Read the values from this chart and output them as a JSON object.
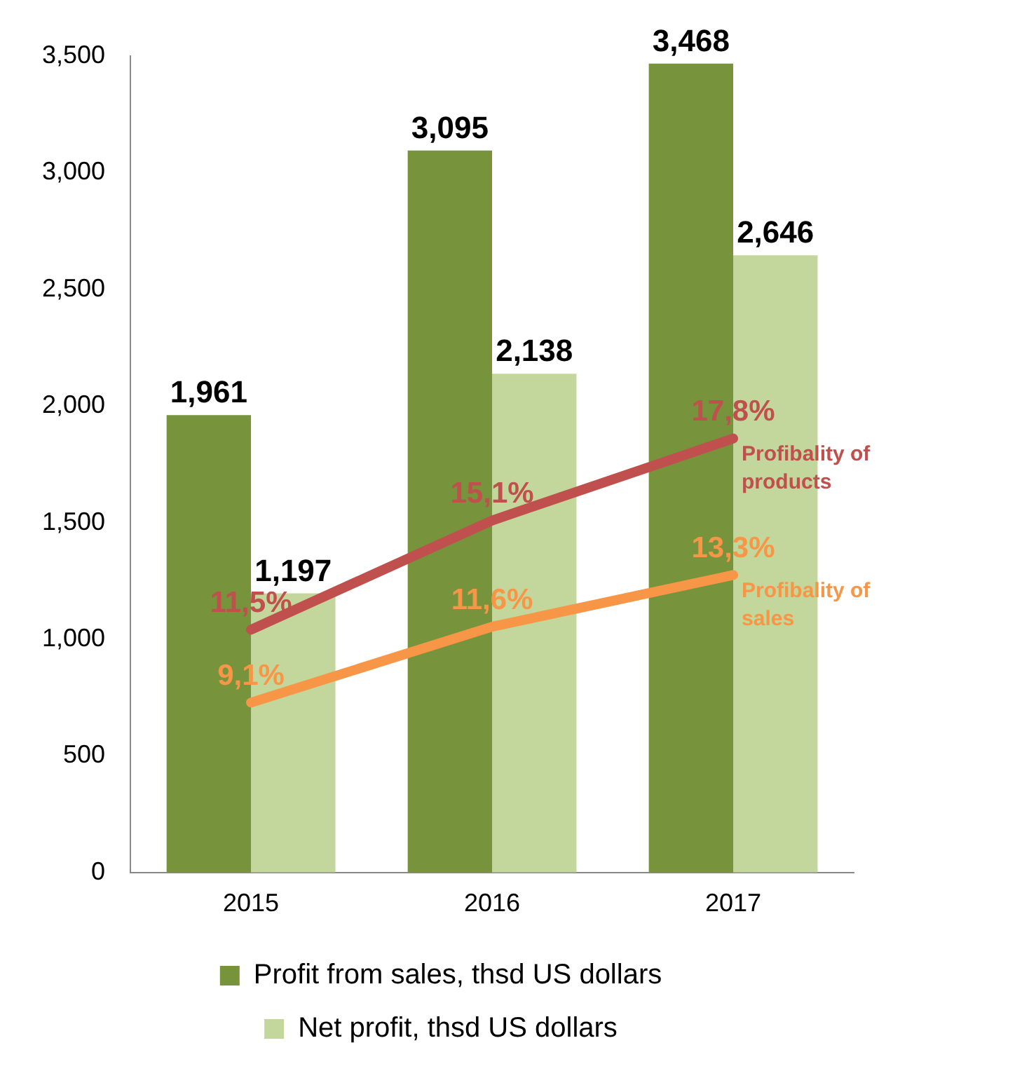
{
  "chart_data": {
    "type": "bar",
    "categories": [
      "2015",
      "2016",
      "2017"
    ],
    "series": [
      {
        "name": "Profit from sales, thsd US dollars",
        "color": "#77933c",
        "values": [
          1961,
          3095,
          3468
        ],
        "value_labels": [
          "1,961",
          "3,095",
          "3,468"
        ]
      },
      {
        "name": "Net profit, thsd US dollars",
        "color": "#c3d69b",
        "values": [
          1197,
          2138,
          2646
        ],
        "value_labels": [
          "1,197",
          "2,138",
          "2,646"
        ]
      },
      {
        "name": "Profibality of products",
        "type": "line",
        "axis": "y2",
        "color": "#c0504d",
        "values": [
          11.5,
          15.1,
          17.8
        ],
        "value_labels": [
          "11,5%",
          "15,1%",
          "17,8%"
        ]
      },
      {
        "name": "Profibality of sales",
        "type": "line",
        "axis": "y2",
        "color": "#f79646",
        "values": [
          9.1,
          11.6,
          13.3
        ],
        "value_labels": [
          "9,1%",
          "11,6%",
          "13,3%"
        ]
      }
    ],
    "ylim": [
      0,
      3500
    ],
    "yticks": [
      0,
      500,
      {
        "value": 1000,
        "label": "1,000"
      },
      {
        "value": 1500,
        "label": "1,500"
      },
      {
        "value": 2000,
        "label": "2,000"
      },
      {
        "value": 2500,
        "label": "2,500"
      },
      {
        "value": 3000,
        "label": "3,000"
      },
      {
        "value": 3500,
        "label": "3,500"
      }
    ],
    "y2lim": [
      3.5,
      30.4
    ],
    "grid": false,
    "legend": "bottom",
    "marker": "none",
    "line_style": "solid"
  }
}
